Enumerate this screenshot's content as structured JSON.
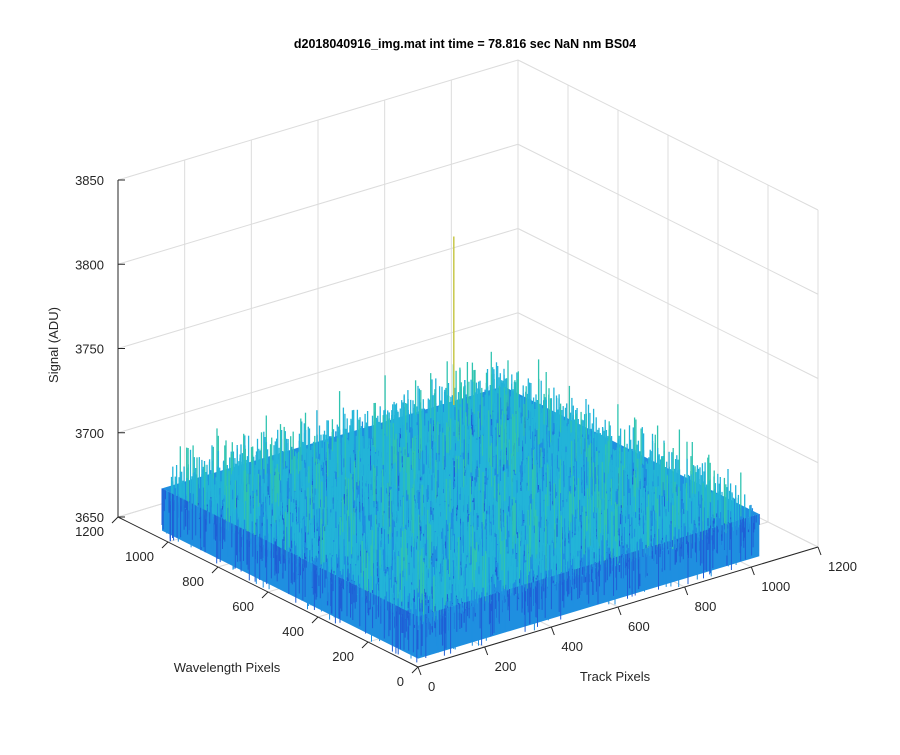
{
  "chart_data": {
    "type": "surface",
    "title": "d2018040916_img.mat int time = 78.816 sec  NaN nm BS04",
    "xlabel": "Track Pixels",
    "ylabel": "Wavelength Pixels",
    "zlabel": "Signal (ADU)",
    "xlim": [
      0,
      1200
    ],
    "ylim": [
      0,
      1200
    ],
    "zlim": [
      3650,
      3850
    ],
    "x_ticks": [
      "0",
      "200",
      "400",
      "600",
      "800",
      "1000",
      "1200"
    ],
    "y_ticks": [
      "0",
      "200",
      "400",
      "600",
      "800",
      "1000",
      "1200"
    ],
    "z_ticks": [
      "3650",
      "3700",
      "3750",
      "3800",
      "3850"
    ],
    "grid": true,
    "colormap": "parula",
    "data_extent": {
      "x": [
        0,
        1024
      ],
      "y": [
        0,
        1024
      ]
    },
    "signal_baseline": 3680,
    "signal_noise_range": [
      3655,
      3715
    ],
    "peak_value": 3780
  },
  "colors": {
    "surface_dark": "#1f5fd6",
    "surface_mid": "#1f8fe0",
    "surface_light": "#22b4d8",
    "surface_teal": "#2fc4b0",
    "grid": "#dcdcdc",
    "axis": "#262626"
  }
}
